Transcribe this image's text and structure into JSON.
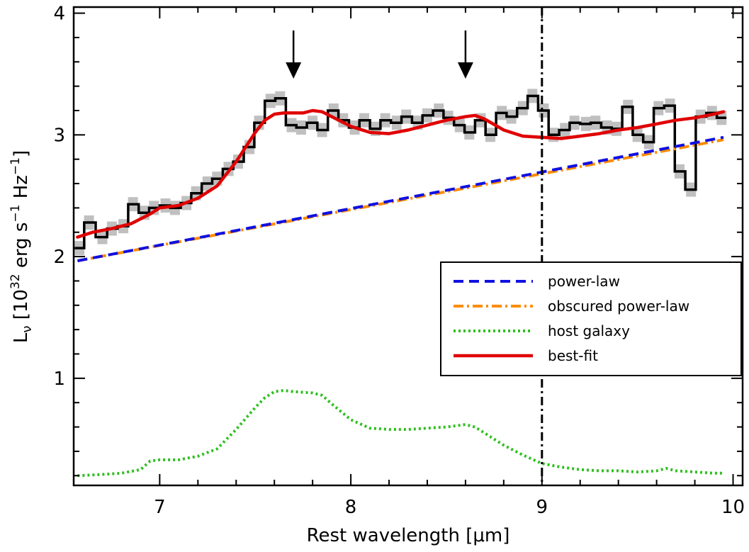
{
  "chart_data": {
    "type": "line",
    "xlabel": "Rest wavelength [μm]",
    "ylabel": "L_ν [10^32 erg s^-1 Hz^-1]",
    "ylabel_parts": {
      "base": "L",
      "sub": "ν",
      "open": " [10",
      "exp1": "32",
      "mid": " erg s",
      "exp2": "−1",
      "mid2": " Hz",
      "exp3": "−1",
      "close": "]"
    },
    "xlim": [
      6.55,
      10.05
    ],
    "ylim": [
      0.12,
      4.05
    ],
    "xticks": [
      7,
      8,
      9,
      10
    ],
    "xtick_labels": [
      "7",
      "8",
      "9",
      "10"
    ],
    "yticks": [
      1,
      2,
      3,
      4
    ],
    "ytick_labels": [
      "1",
      "2",
      "3",
      "4"
    ],
    "colors": {
      "data": "#000000",
      "data_error": "#c0c0c0",
      "power_law": "#1010e0",
      "obscured_power_law": "#ff8c00",
      "host_galaxy": "#2fbf1f",
      "best_fit": "#e00000"
    },
    "arrows_x": [
      7.7,
      8.6
    ],
    "vertical_line_x": 9.0,
    "legend": {
      "placement": "center-right",
      "entries": [
        {
          "key": "power_law",
          "label": "power-law",
          "style": "dashed"
        },
        {
          "key": "obscured_power_law",
          "label": "obscured power-law",
          "style": "dashdot"
        },
        {
          "key": "host_galaxy",
          "label": "host galaxy",
          "style": "dotted"
        },
        {
          "key": "best_fit",
          "label": "best-fit",
          "style": "solid"
        }
      ]
    },
    "spectrum": {
      "x": [
        6.58,
        6.63,
        6.7,
        6.75,
        6.81,
        6.86,
        6.92,
        6.97,
        7.03,
        7.08,
        7.14,
        7.19,
        7.25,
        7.3,
        7.36,
        7.41,
        7.47,
        7.52,
        7.58,
        7.63,
        7.69,
        7.74,
        7.8,
        7.85,
        7.91,
        7.96,
        8.02,
        8.07,
        8.13,
        8.18,
        8.24,
        8.29,
        8.35,
        8.4,
        8.46,
        8.51,
        8.57,
        8.62,
        8.68,
        8.73,
        8.79,
        8.84,
        8.9,
        8.95,
        9.01,
        9.06,
        9.12,
        9.17,
        9.23,
        9.28,
        9.34,
        9.39,
        9.45,
        9.5,
        9.56,
        9.61,
        9.67,
        9.72,
        9.78,
        9.83,
        9.89,
        9.94
      ],
      "y": [
        2.07,
        2.28,
        2.16,
        2.23,
        2.25,
        2.43,
        2.36,
        2.4,
        2.42,
        2.4,
        2.44,
        2.52,
        2.6,
        2.64,
        2.72,
        2.78,
        2.9,
        3.1,
        3.28,
        3.3,
        3.08,
        3.06,
        3.1,
        3.04,
        3.2,
        3.12,
        3.06,
        3.12,
        3.05,
        3.12,
        3.1,
        3.15,
        3.1,
        3.16,
        3.2,
        3.14,
        3.08,
        3.02,
        3.12,
        3.0,
        3.18,
        3.15,
        3.22,
        3.32,
        3.2,
        3.0,
        3.04,
        3.1,
        3.09,
        3.1,
        3.06,
        3.05,
        3.23,
        3.0,
        2.94,
        3.22,
        3.24,
        2.7,
        2.55,
        3.15,
        3.18,
        3.14
      ]
    },
    "power_law": {
      "x": [
        6.57,
        9.95
      ],
      "y": [
        1.965,
        2.98
      ]
    },
    "obscured_power_law": {
      "x": [
        6.57,
        9.95
      ],
      "y": [
        1.965,
        2.96
      ]
    },
    "best_fit": {
      "x": [
        6.57,
        6.65,
        6.75,
        6.85,
        6.95,
        7.0,
        7.1,
        7.2,
        7.3,
        7.4,
        7.5,
        7.55,
        7.6,
        7.65,
        7.7,
        7.75,
        7.8,
        7.85,
        7.9,
        8.0,
        8.1,
        8.2,
        8.3,
        8.4,
        8.5,
        8.6,
        8.65,
        8.7,
        8.8,
        8.9,
        9.0,
        9.1,
        9.2,
        9.3,
        9.4,
        9.5,
        9.6,
        9.7,
        9.8,
        9.9,
        9.95
      ],
      "y": [
        2.16,
        2.2,
        2.23,
        2.27,
        2.35,
        2.4,
        2.42,
        2.48,
        2.58,
        2.78,
        3.02,
        3.12,
        3.17,
        3.18,
        3.18,
        3.18,
        3.2,
        3.19,
        3.15,
        3.07,
        3.02,
        3.01,
        3.04,
        3.08,
        3.12,
        3.15,
        3.16,
        3.13,
        3.04,
        2.99,
        2.98,
        2.97,
        2.99,
        3.01,
        3.04,
        3.06,
        3.09,
        3.12,
        3.14,
        3.17,
        3.19
      ]
    },
    "host_galaxy": {
      "x": [
        6.57,
        6.7,
        6.8,
        6.9,
        6.95,
        7.0,
        7.1,
        7.2,
        7.3,
        7.4,
        7.5,
        7.55,
        7.6,
        7.65,
        7.7,
        7.8,
        7.85,
        7.9,
        8.0,
        8.1,
        8.2,
        8.3,
        8.4,
        8.5,
        8.6,
        8.65,
        8.7,
        8.8,
        8.9,
        9.0,
        9.1,
        9.2,
        9.3,
        9.4,
        9.5,
        9.6,
        9.65,
        9.7,
        9.8,
        9.9,
        9.95
      ],
      "y": [
        0.2,
        0.21,
        0.22,
        0.25,
        0.32,
        0.33,
        0.33,
        0.36,
        0.42,
        0.58,
        0.76,
        0.84,
        0.89,
        0.9,
        0.89,
        0.88,
        0.86,
        0.79,
        0.66,
        0.59,
        0.58,
        0.58,
        0.59,
        0.6,
        0.62,
        0.6,
        0.55,
        0.45,
        0.37,
        0.3,
        0.27,
        0.25,
        0.24,
        0.24,
        0.23,
        0.24,
        0.26,
        0.24,
        0.23,
        0.22,
        0.22
      ]
    }
  }
}
